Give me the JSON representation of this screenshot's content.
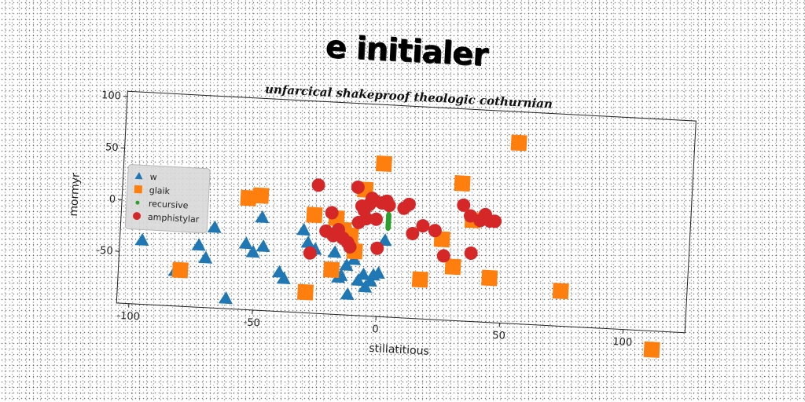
{
  "chart_data": {
    "type": "scatter",
    "title": "e initialer",
    "subtitle": "unfarcical shakeproof theologic cothurnian",
    "xlabel": "stillatitious",
    "ylabel": "mormyr",
    "xlim": [
      -105,
      125
    ],
    "ylim": [
      -100,
      105
    ],
    "xticks": [
      -100,
      -50,
      0,
      50,
      100
    ],
    "yticks": [
      100,
      50,
      0,
      -50
    ],
    "grid": false,
    "legend_placement": "center-left",
    "series": [
      {
        "name": "w",
        "marker": "triangle",
        "color": "#1f77b4",
        "points": [
          [
            -96,
            -38
          ],
          [
            -82,
            -66
          ],
          [
            -73,
            -40
          ],
          [
            -70,
            -52
          ],
          [
            -67,
            -22
          ],
          [
            -61,
            -90
          ],
          [
            -54,
            -36
          ],
          [
            -51,
            -44
          ],
          [
            -48,
            -10
          ],
          [
            -47,
            -38
          ],
          [
            -40,
            -62
          ],
          [
            -38,
            -68
          ],
          [
            -31,
            -20
          ],
          [
            -29,
            -32
          ],
          [
            -26,
            -38
          ],
          [
            -18,
            -40
          ],
          [
            -15,
            -62
          ],
          [
            -13,
            -52
          ],
          [
            -12,
            -80
          ],
          [
            -10,
            -46
          ],
          [
            -8,
            -66
          ],
          [
            -6,
            -60
          ],
          [
            -5,
            -72
          ],
          [
            -2,
            -60
          ],
          [
            0,
            -58
          ],
          [
            2,
            -26
          ],
          [
            -16,
            -64
          ],
          [
            -3,
            -66
          ]
        ]
      },
      {
        "name": "glaik",
        "marker": "square",
        "color": "#ff7f0e",
        "points": [
          [
            -80,
            -65
          ],
          [
            -54,
            8
          ],
          [
            -49,
            11
          ],
          [
            -29,
            -80
          ],
          [
            -27,
            -5
          ],
          [
            -19,
            -57
          ],
          [
            -18,
            -7
          ],
          [
            -15,
            -18
          ],
          [
            -12,
            -23
          ],
          [
            -10,
            -38
          ],
          [
            -7,
            22
          ],
          [
            0,
            48
          ],
          [
            17,
            -62
          ],
          [
            25,
            -22
          ],
          [
            30,
            -48
          ],
          [
            32,
            33
          ],
          [
            37,
            -2
          ],
          [
            45,
            -57
          ],
          [
            54,
            75
          ],
          [
            74,
            -66
          ],
          [
            112,
            -118
          ]
        ]
      },
      {
        "name": "recursive",
        "marker": "circle-small",
        "color": "#2ca02c",
        "points": [
          [
            3,
            -2
          ],
          [
            3,
            -5
          ],
          [
            3,
            -8
          ],
          [
            3,
            -11
          ],
          [
            3,
            -13
          ]
        ]
      },
      {
        "name": "amphistylar",
        "marker": "circle",
        "color": "#d62728",
        "points": [
          [
            -26,
            24
          ],
          [
            -22,
            -20
          ],
          [
            -20,
            -2
          ],
          [
            -19,
            -24
          ],
          [
            -17,
            -18
          ],
          [
            -15,
            -26
          ],
          [
            -13,
            -30
          ],
          [
            -12,
            -34
          ],
          [
            -10,
            24
          ],
          [
            -9,
            -10
          ],
          [
            -8,
            6
          ],
          [
            -7,
            2
          ],
          [
            -6,
            -6
          ],
          [
            -5,
            8
          ],
          [
            -4,
            14
          ],
          [
            -3,
            12
          ],
          [
            -2,
            -6
          ],
          [
            -1,
            -34
          ],
          [
            0,
            10
          ],
          [
            2,
            12
          ],
          [
            3,
            8
          ],
          [
            9,
            6
          ],
          [
            11,
            10
          ],
          [
            13,
            -18
          ],
          [
            17,
            -10
          ],
          [
            22,
            -14
          ],
          [
            26,
            -38
          ],
          [
            33,
            12
          ],
          [
            36,
            2
          ],
          [
            37,
            -34
          ],
          [
            40,
            -2
          ],
          [
            42,
            4
          ],
          [
            44,
            -2
          ],
          [
            46,
            -2
          ],
          [
            -28,
            -42
          ]
        ]
      }
    ]
  }
}
